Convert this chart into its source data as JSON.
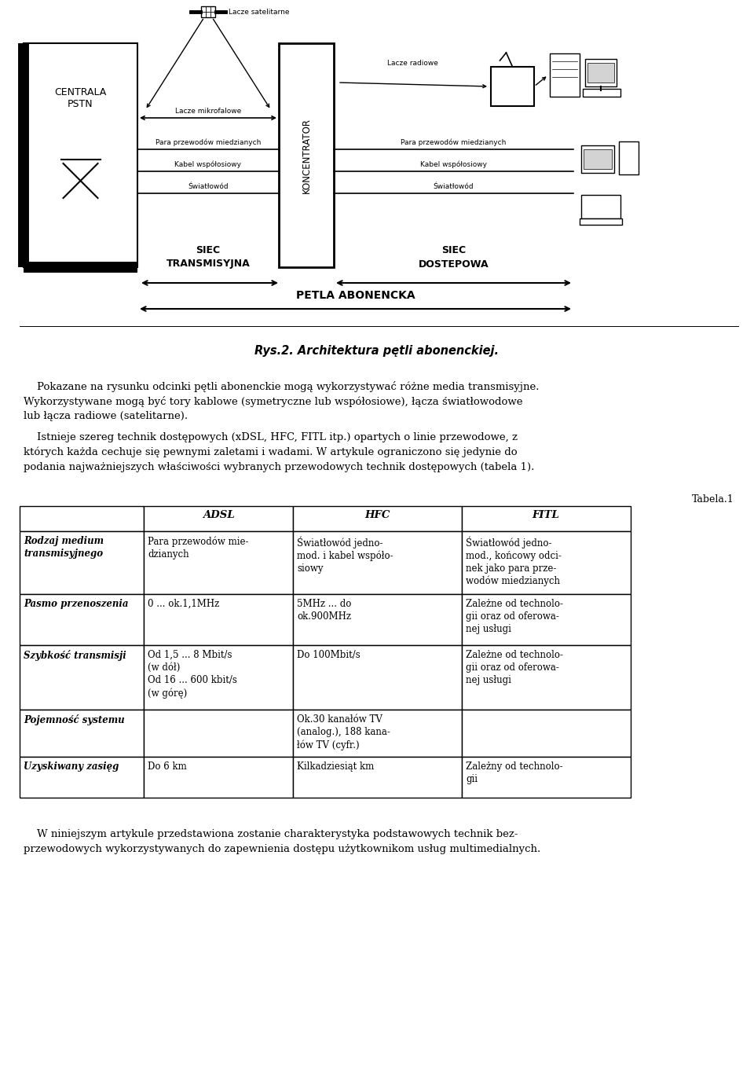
{
  "fig_width": 9.6,
  "fig_height": 13.87,
  "bg_color": "#ffffff",
  "caption": "Rys.2. Architektura pętli abonenckiej.",
  "para1_line1": "    Pokazane na rysunku odcinki pętli abonenckie mogą wykorzystywać różne media transmisyjne.",
  "para1_line2": "Wykorzystywane mogą być tory kablowe (symetryczne lub współosiowe), łącza światłowodowe",
  "para1_line3": "lub łącza radiowe (satelitarne).",
  "para2_line1": "    Istnieje szereg technik dostępowych (xDSL, HFC, FITL itp.) opartych o linie przewodowe, z",
  "para2_line2": "których każda cechuje się pewnymi zaletami i wadami. W artykule ograniczono się jedynie do",
  "para2_line3": "podania najważniejszych właściwości wybranych przewodowych technik dostępowych (tabela 1).",
  "tabela_label": "Tabela.1",
  "table_headers": [
    "",
    "ADSL",
    "HFC",
    "FITL"
  ],
  "row0_col0": "Rodzaj medium\ntransmisyjnego",
  "row0_col1": "Para przewodów mie-\ndzianych",
  "row0_col2": "Światłowód jedno-\nmod. i kabel współo-\nsiowy",
  "row0_col3": "Światłowód jedno-\nmod., końcowy odci-\nnek jako para prze-\nwodów miedzianych",
  "row1_col0": "Pasmo przenoszenia",
  "row1_col1": "0 ... ok.1,1MHz",
  "row1_col2": "5MHz ... do\nok.900MHz",
  "row1_col3": "Zależne od technolo-\ngii oraz od oferowa-\nnej usługi",
  "row2_col0": "Szybkość transmisji",
  "row2_col1": "Od 1,5 ... 8 Mbit/s\n(w dół)\nOd 16 ... 600 kbit/s\n(w górę)",
  "row2_col2": "Do 100Mbit/s",
  "row2_col3": "Zależne od technolo-\ngii oraz od oferowa-\nnej usługi",
  "row3_col0": "Pojemność systemu",
  "row3_col1": "",
  "row3_col2": "Ok.30 kanałów TV\n(analog.), 188 kana-\nłów TV (cyfr.)",
  "row3_col3": "",
  "row4_col0": "Uzyskiwany zasięg",
  "row4_col1": "Do 6 km",
  "row4_col2": "Kilkadziesiąt km",
  "row4_col3": "Zależny od technolo-\ngii",
  "para3_line1": "    W niniejszym artykule przedstawiona zostanie charakterystyka podstawowych technik bez-",
  "para3_line2": "przewodowych wykorzystywanych do zapewnienia dostępu użytkownikom usług multimedialnych."
}
